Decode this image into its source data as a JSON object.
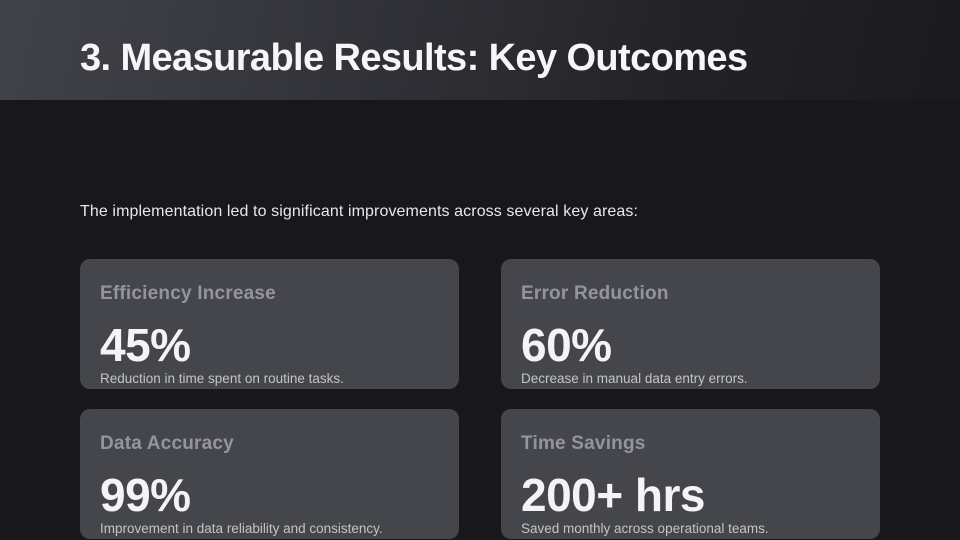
{
  "slide": {
    "title": "3. Measurable Results: Key Outcomes",
    "intro": "The implementation led to significant improvements across several key areas:"
  },
  "cards": [
    {
      "heading": "Efficiency Increase",
      "value": "45%",
      "caption": "Reduction in time spent on routine tasks."
    },
    {
      "heading": "Error Reduction",
      "value": "60%",
      "caption": "Decrease in manual data entry errors."
    },
    {
      "heading": "Data Accuracy",
      "value": "99%",
      "caption": "Improvement in data reliability and consistency."
    },
    {
      "heading": "Time Savings",
      "value": "200+ hrs",
      "caption": "Saved monthly across operational teams."
    }
  ],
  "colors": {
    "background": "#18181b",
    "header_gradient_start": "#42434a",
    "header_gradient_end": "#1a1a1e",
    "card_background": "#45464c",
    "title_text": "#f6f6f8",
    "intro_text": "#e7e8ea",
    "card_heading_text": "#94959b",
    "card_value_text": "#f4f4f6",
    "card_caption_text": "#c3c4c8"
  }
}
